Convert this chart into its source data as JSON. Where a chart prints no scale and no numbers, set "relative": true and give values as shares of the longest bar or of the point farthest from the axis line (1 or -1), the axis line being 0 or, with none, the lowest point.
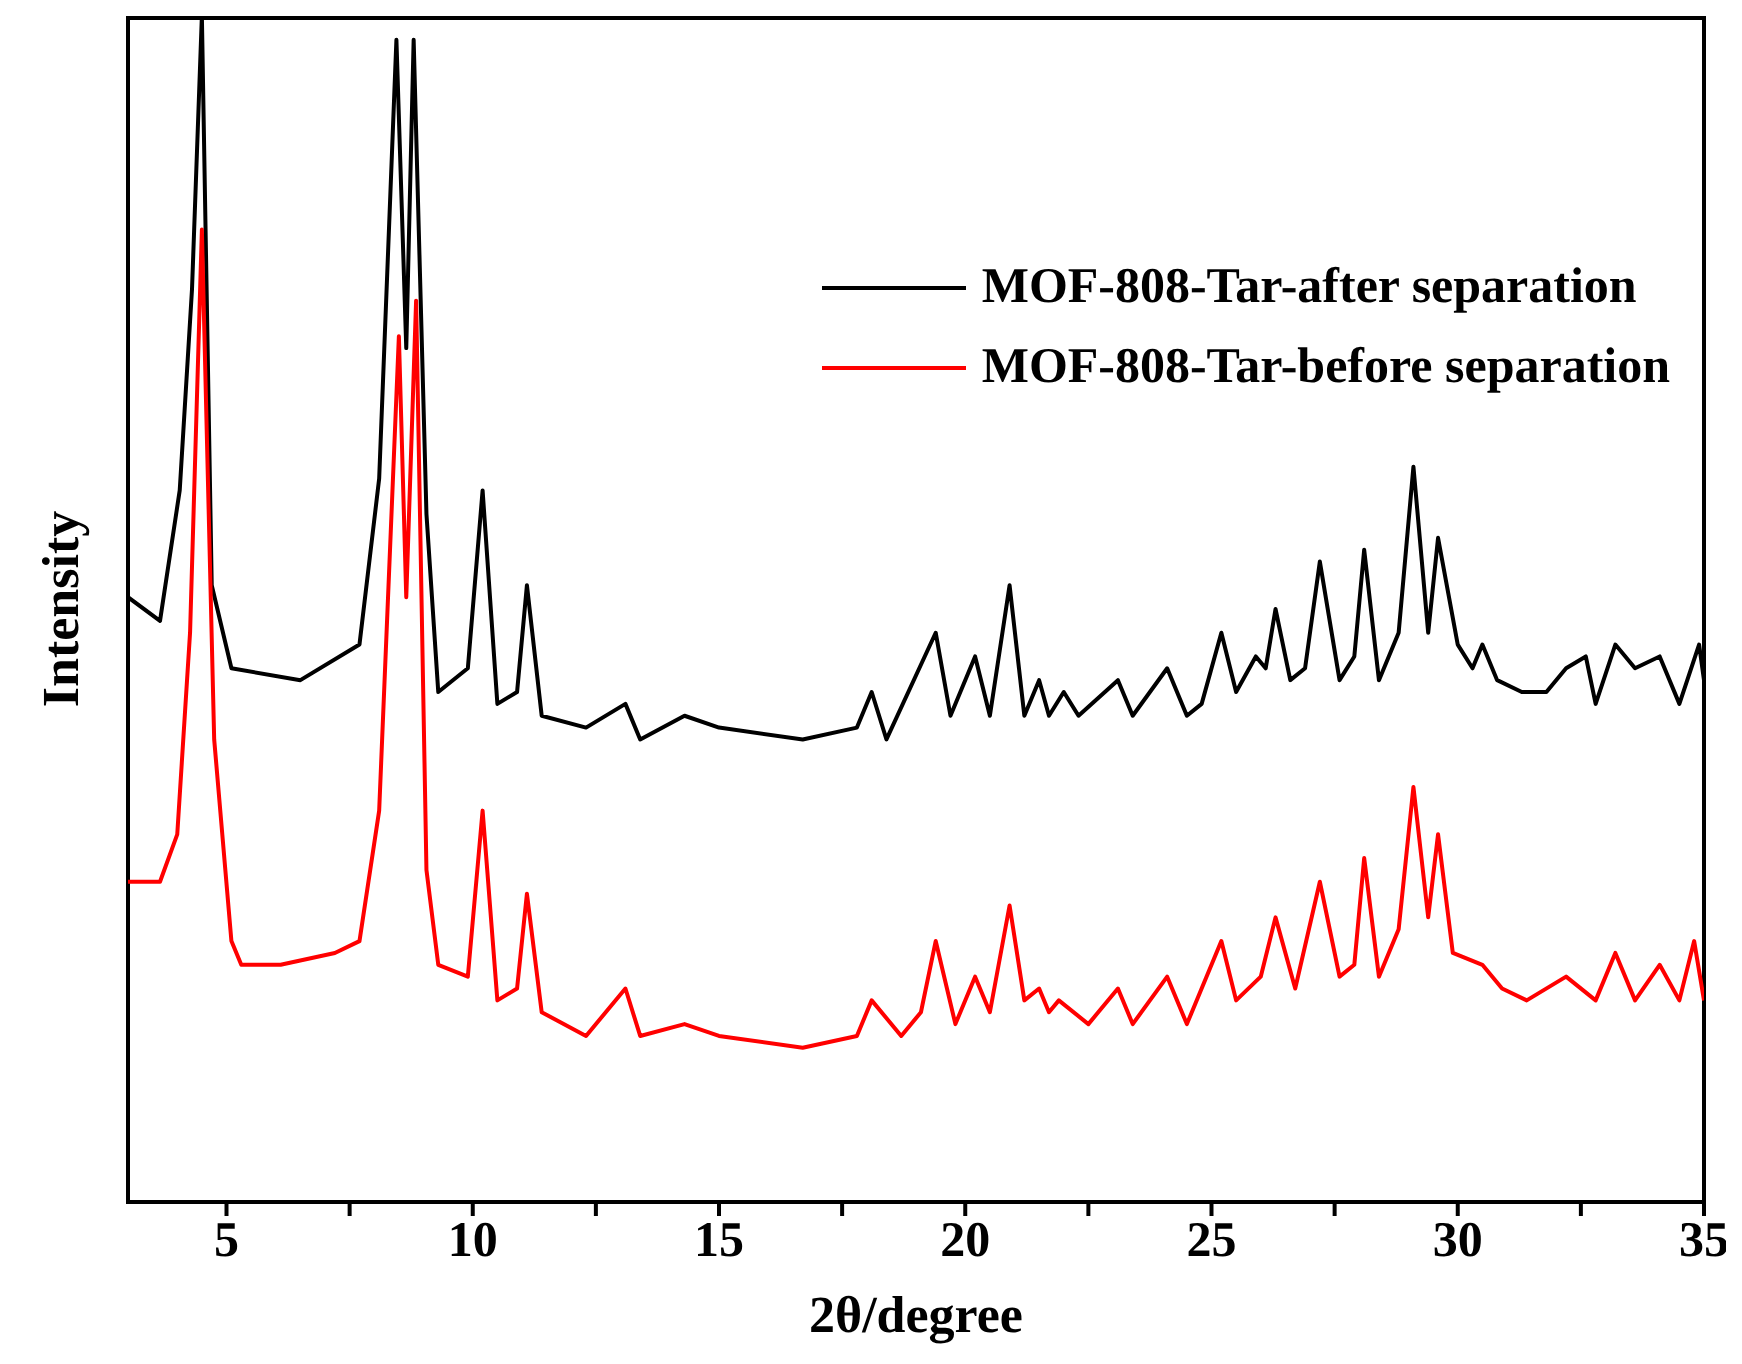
{
  "chart_data": {
    "type": "line",
    "xlabel": "2θ/degree",
    "ylabel": "Intensity",
    "relative": true,
    "xlim": [
      3,
      35
    ],
    "xticks": [
      5,
      {
        "value": 7.5,
        "label": null
      },
      10,
      {
        "value": 12.5,
        "label": null
      },
      15,
      {
        "value": 17.5,
        "label": null
      },
      20,
      {
        "value": 22.5,
        "label": null
      },
      25,
      {
        "value": 27.5,
        "label": null
      },
      30,
      {
        "value": 32.5,
        "label": null
      },
      35
    ],
    "legend": "top right",
    "grid": false,
    "marker": "none",
    "line_style": "solid",
    "series": [
      {
        "name": "MOF-808-Tar-after separation",
        "color": "#000000",
        "x": [
          3.0,
          3.65,
          4.05,
          4.3,
          4.5,
          4.7,
          5.1,
          6.5,
          7.7,
          8.1,
          8.45,
          8.65,
          8.8,
          9.06,
          9.3,
          9.9,
          10.2,
          10.5,
          10.9,
          11.1,
          11.4,
          12.3,
          13.1,
          13.4,
          14.3,
          15.0,
          16.7,
          17.8,
          18.1,
          18.4,
          19.4,
          19.7,
          20.2,
          20.5,
          20.9,
          21.2,
          21.5,
          21.7,
          22.0,
          22.3,
          23.1,
          23.4,
          24.1,
          24.5,
          24.8,
          25.2,
          25.5,
          25.9,
          26.1,
          26.3,
          26.6,
          26.9,
          27.2,
          27.6,
          27.9,
          28.1,
          28.4,
          28.8,
          29.1,
          29.4,
          29.6,
          30.0,
          30.3,
          30.5,
          30.8,
          31.3,
          31.8,
          32.2,
          32.6,
          32.8,
          33.2,
          33.6,
          34.1,
          34.5,
          34.9,
          35.0
        ],
        "values": [
          0.51,
          0.49,
          0.6,
          0.77,
          1.0,
          0.52,
          0.45,
          0.44,
          0.47,
          0.61,
          0.98,
          0.72,
          0.98,
          0.58,
          0.43,
          0.45,
          0.6,
          0.42,
          0.43,
          0.52,
          0.41,
          0.4,
          0.42,
          0.39,
          0.41,
          0.4,
          0.39,
          0.4,
          0.43,
          0.39,
          0.48,
          0.41,
          0.46,
          0.41,
          0.52,
          0.41,
          0.44,
          0.41,
          0.43,
          0.41,
          0.44,
          0.41,
          0.45,
          0.41,
          0.42,
          0.48,
          0.43,
          0.46,
          0.45,
          0.5,
          0.44,
          0.45,
          0.54,
          0.44,
          0.46,
          0.55,
          0.44,
          0.48,
          0.62,
          0.48,
          0.56,
          0.47,
          0.45,
          0.47,
          0.44,
          0.43,
          0.43,
          0.45,
          0.46,
          0.42,
          0.47,
          0.45,
          0.46,
          0.42,
          0.47,
          0.44
        ]
      },
      {
        "name": "MOF-808-Tar-before separation",
        "color": "#ff0000",
        "x": [
          3.0,
          3.65,
          4.0,
          4.26,
          4.5,
          4.75,
          5.1,
          5.3,
          6.1,
          7.2,
          7.7,
          8.1,
          8.5,
          8.65,
          8.85,
          9.06,
          9.3,
          9.9,
          10.2,
          10.5,
          10.9,
          11.1,
          11.4,
          12.3,
          13.1,
          13.4,
          14.3,
          15.0,
          16.7,
          17.8,
          18.1,
          18.7,
          19.1,
          19.4,
          19.8,
          20.2,
          20.5,
          20.9,
          21.2,
          21.5,
          21.7,
          21.9,
          22.5,
          23.1,
          23.4,
          24.1,
          24.5,
          25.2,
          25.5,
          26.0,
          26.3,
          26.7,
          27.2,
          27.6,
          27.9,
          28.1,
          28.4,
          28.8,
          29.1,
          29.4,
          29.6,
          29.9,
          30.5,
          30.9,
          31.4,
          32.2,
          32.8,
          33.2,
          33.6,
          34.1,
          34.5,
          34.8,
          35.0
        ],
        "values": [
          0.27,
          0.27,
          0.31,
          0.48,
          0.82,
          0.39,
          0.22,
          0.2,
          0.2,
          0.21,
          0.22,
          0.33,
          0.73,
          0.51,
          0.76,
          0.28,
          0.2,
          0.19,
          0.33,
          0.17,
          0.18,
          0.26,
          0.16,
          0.14,
          0.18,
          0.14,
          0.15,
          0.14,
          0.13,
          0.14,
          0.17,
          0.14,
          0.16,
          0.22,
          0.15,
          0.19,
          0.16,
          0.25,
          0.17,
          0.18,
          0.16,
          0.17,
          0.15,
          0.18,
          0.15,
          0.19,
          0.15,
          0.22,
          0.17,
          0.19,
          0.24,
          0.18,
          0.27,
          0.19,
          0.2,
          0.29,
          0.19,
          0.23,
          0.35,
          0.24,
          0.31,
          0.21,
          0.2,
          0.18,
          0.17,
          0.19,
          0.17,
          0.21,
          0.17,
          0.2,
          0.17,
          0.22,
          0.17
        ]
      }
    ]
  }
}
